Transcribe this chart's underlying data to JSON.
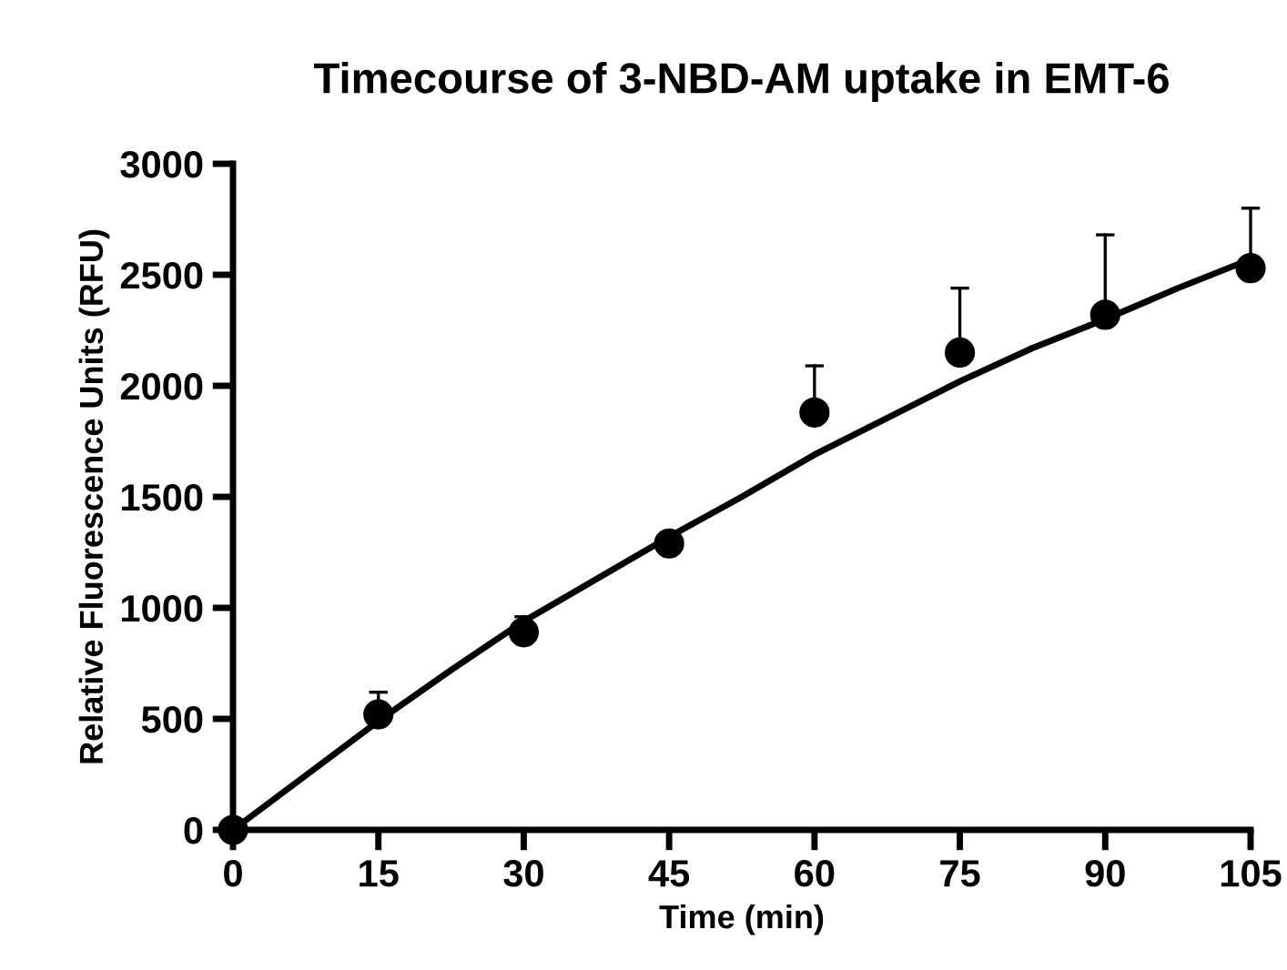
{
  "chart_data": {
    "type": "scatter",
    "title": "Timecourse of 3-NBD-AM uptake in EMT-6",
    "xlabel": "Time (min)",
    "ylabel": "Relative Fluorescence Units (RFU)",
    "xlim": [
      0,
      105
    ],
    "xticks": [
      0,
      15,
      30,
      45,
      60,
      75,
      90,
      105
    ],
    "ylim": [
      0,
      3000
    ],
    "yticks": [
      0,
      500,
      1000,
      1500,
      2000,
      2500,
      3000
    ],
    "grid": false,
    "legend": false,
    "series": [
      {
        "color": "#000000",
        "marker": "circle",
        "x": [
          0,
          15,
          30,
          45,
          60,
          75,
          90,
          105
        ],
        "values": [
          0,
          520,
          890,
          1290,
          1880,
          2150,
          2320,
          2530
        ],
        "errors": [
          null,
          [
            520,
            620
          ],
          [
            890,
            960
          ],
          null,
          [
            1880,
            2090
          ],
          [
            2150,
            2440
          ],
          [
            2320,
            2680
          ],
          [
            2530,
            2800
          ]
        ]
      },
      {
        "type": "line",
        "color": "#000000",
        "line_style": "solid",
        "x": [
          0,
          15,
          22.5,
          30,
          45,
          52.5,
          60,
          75,
          82.5,
          90,
          97.5,
          105
        ],
        "values": [
          0,
          490,
          720,
          940,
          1320,
          1500,
          1690,
          2020,
          2170,
          2300,
          2440,
          2570
        ]
      }
    ]
  }
}
